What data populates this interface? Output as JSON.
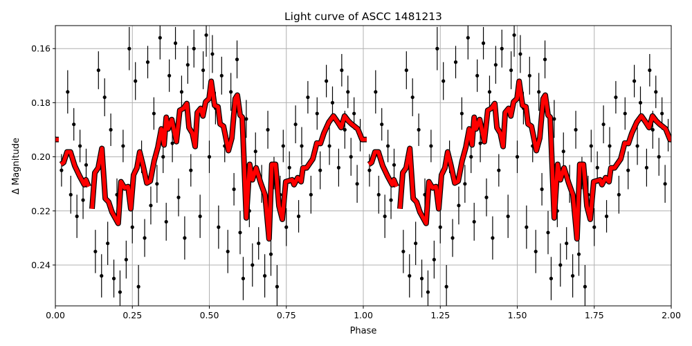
{
  "chart_data": {
    "type": "scatter",
    "title": "Light curve of ASCC 1481213",
    "xlabel": "Phase",
    "ylabel": "Δ Magnitude",
    "xlim": [
      0,
      2
    ],
    "ylim": [
      0.2551,
      0.1515
    ],
    "y_inverted": true,
    "grid": true,
    "xticks": [
      "0.00",
      "0.25",
      "0.50",
      "0.75",
      "1.00",
      "1.25",
      "1.50",
      "1.75",
      "2.00"
    ],
    "yticks": [
      "0.16",
      "0.18",
      "0.20",
      "0.22",
      "0.24"
    ],
    "colors": {
      "points": "#000000",
      "binned_line": "#ff0000",
      "binned_outline": "#000000",
      "grid": "#b0b0b0"
    },
    "phase_repeat": true,
    "points": [
      [
        0.02,
        0.205,
        0.006
      ],
      [
        0.04,
        0.176,
        0.008
      ],
      [
        0.05,
        0.214,
        0.007
      ],
      [
        0.06,
        0.188,
        0.006
      ],
      [
        0.07,
        0.222,
        0.008
      ],
      [
        0.08,
        0.196,
        0.006
      ],
      [
        0.09,
        0.216,
        0.007
      ],
      [
        0.1,
        0.203,
        0.006
      ],
      [
        0.13,
        0.235,
        0.008
      ],
      [
        0.14,
        0.168,
        0.007
      ],
      [
        0.15,
        0.244,
        0.008
      ],
      [
        0.16,
        0.178,
        0.007
      ],
      [
        0.17,
        0.232,
        0.008
      ],
      [
        0.18,
        0.19,
        0.006
      ],
      [
        0.19,
        0.245,
        0.007
      ],
      [
        0.2,
        0.214,
        0.006
      ],
      [
        0.21,
        0.25,
        0.008
      ],
      [
        0.22,
        0.196,
        0.006
      ],
      [
        0.23,
        0.238,
        0.007
      ],
      [
        0.24,
        0.16,
        0.008
      ],
      [
        0.25,
        0.226,
        0.006
      ],
      [
        0.26,
        0.172,
        0.007
      ],
      [
        0.27,
        0.248,
        0.008
      ],
      [
        0.28,
        0.2,
        0.006
      ],
      [
        0.29,
        0.23,
        0.007
      ],
      [
        0.3,
        0.165,
        0.006
      ],
      [
        0.31,
        0.218,
        0.007
      ],
      [
        0.32,
        0.184,
        0.006
      ],
      [
        0.33,
        0.21,
        0.007
      ],
      [
        0.34,
        0.156,
        0.008
      ],
      [
        0.35,
        0.2,
        0.006
      ],
      [
        0.36,
        0.224,
        0.007
      ],
      [
        0.37,
        0.17,
        0.006
      ],
      [
        0.38,
        0.195,
        0.007
      ],
      [
        0.39,
        0.158,
        0.006
      ],
      [
        0.4,
        0.215,
        0.007
      ],
      [
        0.41,
        0.176,
        0.006
      ],
      [
        0.42,
        0.23,
        0.008
      ],
      [
        0.43,
        0.166,
        0.007
      ],
      [
        0.44,
        0.205,
        0.006
      ],
      [
        0.45,
        0.16,
        0.007
      ],
      [
        0.46,
        0.19,
        0.006
      ],
      [
        0.47,
        0.222,
        0.008
      ],
      [
        0.48,
        0.168,
        0.007
      ],
      [
        0.49,
        0.155,
        0.008
      ],
      [
        0.5,
        0.2,
        0.006
      ],
      [
        0.51,
        0.162,
        0.007
      ],
      [
        0.52,
        0.182,
        0.006
      ],
      [
        0.53,
        0.226,
        0.008
      ],
      [
        0.54,
        0.17,
        0.007
      ],
      [
        0.55,
        0.196,
        0.006
      ],
      [
        0.56,
        0.235,
        0.008
      ],
      [
        0.57,
        0.176,
        0.007
      ],
      [
        0.58,
        0.212,
        0.006
      ],
      [
        0.59,
        0.164,
        0.007
      ],
      [
        0.6,
        0.228,
        0.008
      ],
      [
        0.61,
        0.245,
        0.008
      ],
      [
        0.62,
        0.186,
        0.007
      ],
      [
        0.63,
        0.22,
        0.006
      ],
      [
        0.64,
        0.24,
        0.008
      ],
      [
        0.65,
        0.198,
        0.007
      ],
      [
        0.66,
        0.232,
        0.006
      ],
      [
        0.67,
        0.21,
        0.007
      ],
      [
        0.68,
        0.244,
        0.008
      ],
      [
        0.69,
        0.19,
        0.007
      ],
      [
        0.7,
        0.236,
        0.008
      ],
      [
        0.71,
        0.206,
        0.006
      ],
      [
        0.72,
        0.248,
        0.008
      ],
      [
        0.73,
        0.214,
        0.007
      ],
      [
        0.74,
        0.196,
        0.006
      ],
      [
        0.75,
        0.226,
        0.007
      ],
      [
        0.76,
        0.204,
        0.006
      ],
      [
        0.78,
        0.188,
        0.007
      ],
      [
        0.79,
        0.222,
        0.006
      ],
      [
        0.8,
        0.196,
        0.007
      ],
      [
        0.82,
        0.178,
        0.006
      ],
      [
        0.83,
        0.214,
        0.007
      ],
      [
        0.85,
        0.184,
        0.006
      ],
      [
        0.86,
        0.205,
        0.007
      ],
      [
        0.88,
        0.172,
        0.006
      ],
      [
        0.89,
        0.196,
        0.007
      ],
      [
        0.9,
        0.18,
        0.006
      ],
      [
        0.92,
        0.204,
        0.007
      ],
      [
        0.93,
        0.168,
        0.006
      ],
      [
        0.94,
        0.19,
        0.007
      ],
      [
        0.95,
        0.176,
        0.006
      ],
      [
        0.96,
        0.2,
        0.007
      ],
      [
        0.97,
        0.184,
        0.006
      ],
      [
        0.98,
        0.21,
        0.007
      ],
      [
        0.99,
        0.192,
        0.006
      ]
    ],
    "binned_segments": [
      [
        [
          0.018,
          0.2028
        ],
        [
          0.027,
          0.2021
        ],
        [
          0.038,
          0.1982
        ],
        [
          0.049,
          0.1982
        ],
        [
          0.063,
          0.2033
        ],
        [
          0.079,
          0.2072
        ],
        [
          0.094,
          0.2103
        ],
        [
          0.099,
          0.2085
        ],
        [
          0.108,
          0.211
        ]
      ],
      [
        [
          0.119,
          0.2192
        ],
        [
          0.128,
          0.2059
        ],
        [
          0.139,
          0.2041
        ],
        [
          0.151,
          0.1969
        ],
        [
          0.162,
          0.2154
        ],
        [
          0.173,
          0.2167
        ],
        [
          0.184,
          0.2205
        ],
        [
          0.204,
          0.2246
        ],
        [
          0.213,
          0.2092
        ],
        [
          0.225,
          0.2115
        ],
        [
          0.236,
          0.211
        ],
        [
          0.245,
          0.2192
        ],
        [
          0.254,
          0.2067
        ],
        [
          0.265,
          0.2041
        ],
        [
          0.274,
          0.1982
        ],
        [
          0.285,
          0.2033
        ],
        [
          0.297,
          0.2097
        ],
        [
          0.308,
          0.209
        ],
        [
          0.321,
          0.2015
        ],
        [
          0.333,
          0.1964
        ],
        [
          0.344,
          0.1897
        ],
        [
          0.353,
          0.1956
        ],
        [
          0.36,
          0.1854
        ],
        [
          0.366,
          0.1897
        ],
        [
          0.378,
          0.1862
        ],
        [
          0.393,
          0.1944
        ],
        [
          0.404,
          0.1828
        ],
        [
          0.416,
          0.1821
        ],
        [
          0.427,
          0.1803
        ],
        [
          0.434,
          0.1892
        ],
        [
          0.445,
          0.1913
        ],
        [
          0.454,
          0.1962
        ],
        [
          0.461,
          0.1836
        ],
        [
          0.472,
          0.1821
        ],
        [
          0.479,
          0.1849
        ],
        [
          0.488,
          0.1797
        ],
        [
          0.499,
          0.1785
        ],
        [
          0.506,
          0.1721
        ],
        [
          0.517,
          0.181
        ],
        [
          0.528,
          0.1815
        ],
        [
          0.535,
          0.1879
        ],
        [
          0.546,
          0.1887
        ],
        [
          0.562,
          0.1977
        ],
        [
          0.573,
          0.1931
        ],
        [
          0.584,
          0.1785
        ],
        [
          0.591,
          0.1772
        ],
        [
          0.6,
          0.1846
        ],
        [
          0.607,
          0.1854
        ],
        [
          0.62,
          0.2226
        ],
        [
          0.631,
          0.2028
        ],
        [
          0.64,
          0.2085
        ],
        [
          0.652,
          0.2041
        ],
        [
          0.667,
          0.2097
        ],
        [
          0.681,
          0.2141
        ],
        [
          0.694,
          0.2303
        ],
        [
          0.703,
          0.2028
        ],
        [
          0.715,
          0.2028
        ],
        [
          0.726,
          0.2182
        ],
        [
          0.737,
          0.2231
        ],
        [
          0.748,
          0.2092
        ],
        [
          0.769,
          0.2085
        ],
        [
          0.775,
          0.2103
        ],
        [
          0.787,
          0.2077
        ],
        [
          0.798,
          0.2092
        ],
        [
          0.804,
          0.2041
        ],
        [
          0.816,
          0.2041
        ],
        [
          0.836,
          0.2008
        ],
        [
          0.849,
          0.1949
        ],
        [
          0.861,
          0.1951
        ],
        [
          0.872,
          0.1913
        ],
        [
          0.888,
          0.1872
        ],
        [
          0.903,
          0.1849
        ],
        [
          0.917,
          0.1872
        ],
        [
          0.928,
          0.1892
        ],
        [
          0.939,
          0.1849
        ],
        [
          0.951,
          0.1867
        ],
        [
          0.962,
          0.1879
        ],
        [
          0.971,
          0.1887
        ],
        [
          0.982,
          0.1897
        ],
        [
          0.996,
          0.1936
        ],
        [
          1.011,
          0.1936
        ]
      ]
    ]
  }
}
